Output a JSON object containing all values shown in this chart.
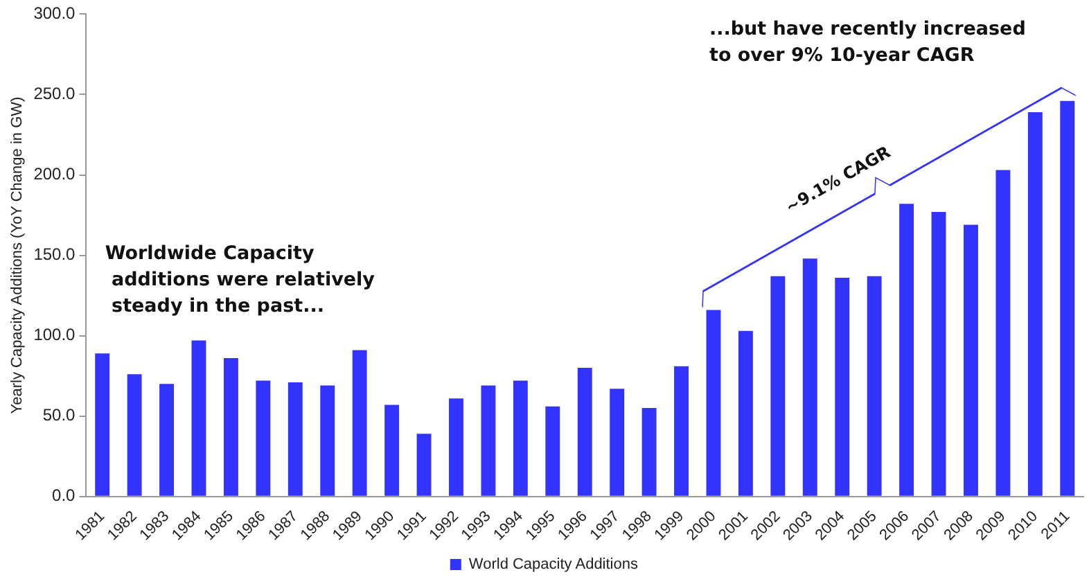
{
  "chart_data": {
    "type": "bar",
    "ylabel": "Yearly Capacity Additions (YoY Change in GW)",
    "categories": [
      "1981",
      "1982",
      "1983",
      "1984",
      "1985",
      "1986",
      "1987",
      "1988",
      "1989",
      "1990",
      "1991",
      "1992",
      "1993",
      "1994",
      "1995",
      "1996",
      "1997",
      "1998",
      "1999",
      "2000",
      "2001",
      "2002",
      "2003",
      "2004",
      "2005",
      "2006",
      "2007",
      "2008",
      "2009",
      "2010",
      "2011"
    ],
    "series": [
      {
        "name": "World Capacity Additions",
        "color": "#3333ff",
        "values": [
          89,
          76,
          70,
          97,
          86,
          72,
          71,
          69,
          91,
          57,
          39,
          61,
          69,
          72,
          56,
          80,
          67,
          55,
          81,
          116,
          103,
          137,
          148,
          136,
          137,
          182,
          177,
          169,
          203,
          239,
          246
        ]
      }
    ],
    "ylim": [
      0,
      300
    ],
    "yticks": [
      {
        "value": 0,
        "label": "0.0"
      },
      {
        "value": 50,
        "label": "50.0"
      },
      {
        "value": 100,
        "label": "100.0"
      },
      {
        "value": 150,
        "label": "150.0"
      },
      {
        "value": 200,
        "label": "200.0"
      },
      {
        "value": 250,
        "label": "250.0"
      },
      {
        "value": 300,
        "label": "300.0"
      }
    ],
    "grid": false,
    "legend": "bottom",
    "annotations": [
      "Worldwide Capacity\n additions were relatively\n steady in the past...",
      "...but have recently increased\nto over 9% 10-year CAGR",
      "~9.1% CAGR"
    ]
  }
}
